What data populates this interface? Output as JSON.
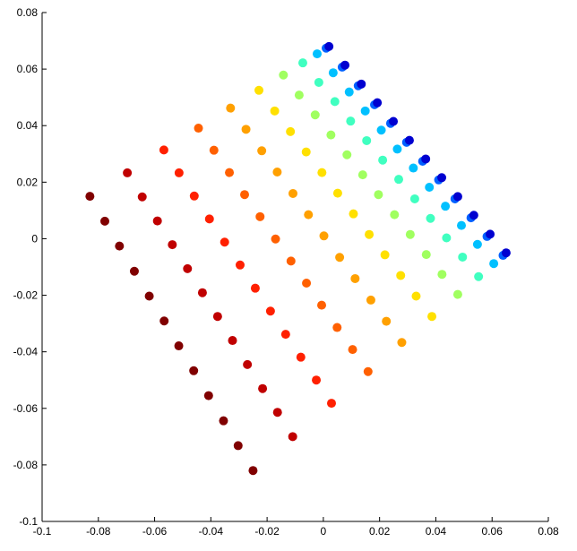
{
  "chart_data": {
    "type": "scatter",
    "xlim": [
      -0.1,
      0.08
    ],
    "ylim": [
      -0.1,
      0.08
    ],
    "xticks": [
      -0.1,
      -0.08,
      -0.06,
      -0.04,
      -0.02,
      0,
      0.02,
      0.04,
      0.06,
      0.08
    ],
    "yticks": [
      -0.1,
      -0.08,
      -0.06,
      -0.04,
      -0.02,
      0,
      0.02,
      0.04,
      0.06,
      0.08
    ],
    "series": [
      {
        "color": "#800000",
        "x": [
          -0.083,
          -0.0777,
          -0.0725,
          -0.0672,
          -0.0619,
          -0.0566,
          -0.0514,
          -0.0461,
          -0.0408,
          -0.0355,
          -0.0303,
          -0.025
        ],
        "values": [
          0.015,
          0.0062,
          -0.0026,
          -0.0115,
          -0.0203,
          -0.0291,
          -0.0379,
          -0.0467,
          -0.0555,
          -0.0644,
          -0.0732,
          -0.082
        ]
      },
      {
        "color": "#c00000",
        "x": [
          -0.0697,
          -0.0644,
          -0.059,
          -0.0537,
          -0.0483,
          -0.043,
          -0.0376,
          -0.0323,
          -0.027,
          -0.0216,
          -0.0163,
          -0.0109
        ],
        "values": [
          0.0233,
          0.0148,
          0.0063,
          -0.0021,
          -0.0106,
          -0.0191,
          -0.0275,
          -0.036,
          -0.0445,
          -0.053,
          -0.0614,
          -0.07
        ]
      },
      {
        "color": "#ff2000",
        "x": [
          -0.0567,
          -0.0513,
          -0.0459,
          -0.0405,
          -0.0351,
          -0.0296,
          -0.0242,
          -0.0188,
          -0.0134,
          -0.008,
          -0.0025,
          0.0029
        ],
        "values": [
          0.0314,
          0.0233,
          0.0151,
          0.007,
          -0.0012,
          -0.0093,
          -0.0175,
          -0.0256,
          -0.0338,
          -0.0419,
          -0.05,
          -0.0582
        ]
      },
      {
        "color": "#ff6000",
        "x": [
          -0.0444,
          -0.0389,
          -0.0334,
          -0.028,
          -0.0225,
          -0.017,
          -0.0115,
          -0.006,
          -0.0006,
          0.0049,
          0.0104,
          0.0159
        ],
        "values": [
          0.0391,
          0.0313,
          0.0234,
          0.0156,
          0.0078,
          -0.0001,
          -0.0079,
          -0.0157,
          -0.0235,
          -0.0314,
          -0.0392,
          -0.047
        ]
      },
      {
        "color": "#ffa000",
        "x": [
          -0.033,
          -0.0275,
          -0.0219,
          -0.0164,
          -0.0108,
          -0.0053,
          0.0002,
          0.0058,
          0.0113,
          0.0169,
          0.0224,
          0.0279
        ],
        "values": [
          0.0462,
          0.0387,
          0.0311,
          0.0236,
          0.016,
          0.0085,
          0.001,
          -0.0066,
          -0.0141,
          -0.0217,
          -0.0292,
          -0.0367
        ]
      },
      {
        "color": "#ffe000",
        "x": [
          -0.0229,
          -0.0173,
          -0.0117,
          -0.0061,
          -0.0005,
          0.0051,
          0.0107,
          0.0163,
          0.0219,
          0.0275,
          0.033,
          0.0386
        ],
        "values": [
          0.0525,
          0.0452,
          0.0379,
          0.0307,
          0.0234,
          0.0161,
          0.0088,
          0.0015,
          -0.0057,
          -0.013,
          -0.0203,
          -0.0275
        ]
      },
      {
        "color": "#a0ff60",
        "x": [
          -0.0142,
          -0.0086,
          -0.0029,
          0.0027,
          0.0084,
          0.014,
          0.0196,
          0.0253,
          0.0309,
          0.0366,
          0.0422,
          0.0478
        ],
        "values": [
          0.0579,
          0.0508,
          0.0438,
          0.0367,
          0.0297,
          0.0226,
          0.0156,
          0.0085,
          0.0015,
          -0.0056,
          -0.0126,
          -0.0197
        ]
      },
      {
        "color": "#40ffc0",
        "x": [
          -0.0073,
          -0.0016,
          0.0041,
          0.0097,
          0.0154,
          0.0211,
          0.0268,
          0.0325,
          0.0381,
          0.0438,
          0.0495,
          0.0552
        ],
        "values": [
          0.0622,
          0.0553,
          0.0485,
          0.0416,
          0.0347,
          0.0278,
          0.021,
          0.0141,
          0.0072,
          0.0003,
          -0.0065,
          -0.0134
        ]
      },
      {
        "color": "#00c0ff",
        "x": [
          -0.0022,
          0.0035,
          0.0092,
          0.0149,
          0.0206,
          0.0263,
          0.032,
          0.0377,
          0.0434,
          0.0491,
          0.0548,
          0.0606
        ],
        "values": [
          0.0654,
          0.0587,
          0.0519,
          0.0452,
          0.0384,
          0.0317,
          0.025,
          0.0182,
          0.0115,
          0.0047,
          -0.002,
          -0.0088
        ]
      },
      {
        "color": "#0060ff",
        "x": [
          0.001,
          0.0067,
          0.0124,
          0.0182,
          0.0239,
          0.0296,
          0.0353,
          0.041,
          0.0468,
          0.0525,
          0.0582,
          0.0639
        ],
        "values": [
          0.0674,
          0.0607,
          0.0541,
          0.0474,
          0.0408,
          0.0341,
          0.0274,
          0.0208,
          0.0141,
          0.0074,
          0.0008,
          -0.0059
        ]
      },
      {
        "color": "#0000d0",
        "x": [
          0.002,
          0.0077,
          0.0135,
          0.0192,
          0.0249,
          0.0306,
          0.0364,
          0.0421,
          0.0478,
          0.0535,
          0.0593,
          0.065
        ],
        "values": [
          0.068,
          0.0614,
          0.0547,
          0.0481,
          0.0415,
          0.0348,
          0.0282,
          0.0216,
          0.0149,
          0.0083,
          0.0016,
          -0.005
        ]
      }
    ]
  }
}
